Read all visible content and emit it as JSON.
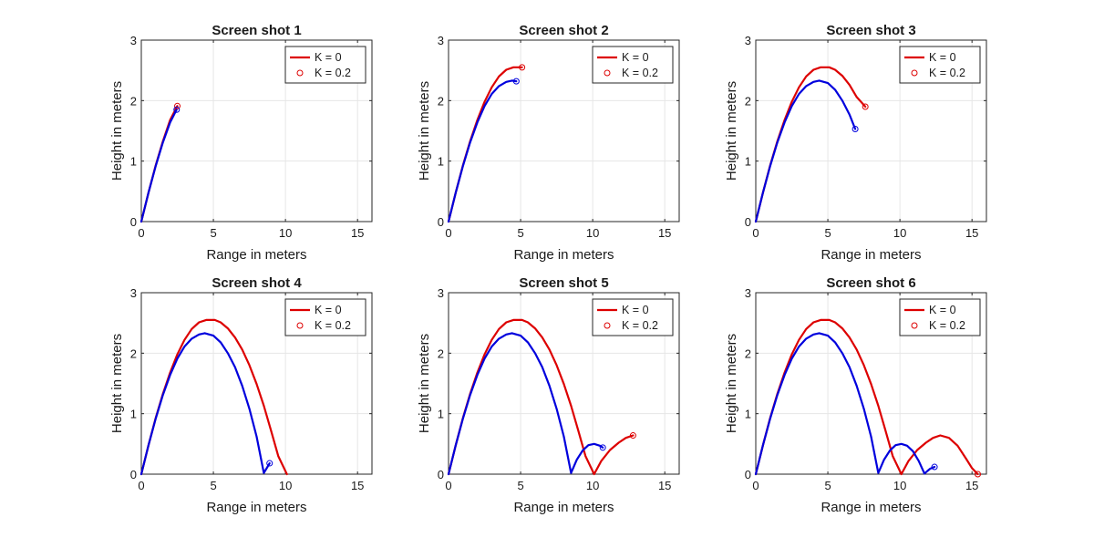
{
  "figure": {
    "colors": {
      "k0": "#dd0000",
      "k02": "#0000dd",
      "axis": "#262626",
      "grid": "#e6e6e6"
    }
  },
  "chart_data": [
    {
      "type": "line",
      "title": "Screen shot 1",
      "xlabel": "Range in meters",
      "ylabel": "Height in meters",
      "xlim": [
        0,
        16
      ],
      "ylim": [
        0,
        3
      ],
      "xticks": [
        0,
        5,
        10,
        15
      ],
      "yticks": [
        0,
        1,
        2,
        3
      ],
      "grid": true,
      "legend": {
        "placement": "top-right",
        "entries": [
          "K = 0",
          "K = 0.2"
        ]
      },
      "series": [
        {
          "name": "K = 0",
          "color": "#dd0000",
          "x": [
            0,
            0.5,
            1.0,
            1.5,
            2.0,
            2.5
          ],
          "y": [
            0,
            0.48,
            0.93,
            1.33,
            1.68,
            1.91
          ],
          "end_marker": true
        },
        {
          "name": "K = 0.2",
          "color": "#0000dd",
          "x": [
            0,
            0.5,
            1.0,
            1.5,
            2.0,
            2.45
          ],
          "y": [
            0,
            0.48,
            0.92,
            1.31,
            1.64,
            1.85
          ],
          "end_marker": true
        }
      ]
    },
    {
      "type": "line",
      "title": "Screen shot 2",
      "xlabel": "Range in meters",
      "ylabel": "Height in meters",
      "xlim": [
        0,
        16
      ],
      "ylim": [
        0,
        3
      ],
      "xticks": [
        0,
        5,
        10,
        15
      ],
      "yticks": [
        0,
        1,
        2,
        3
      ],
      "grid": true,
      "legend": {
        "placement": "top-right",
        "entries": [
          "K = 0",
          "K = 0.2"
        ]
      },
      "series": [
        {
          "name": "K = 0",
          "color": "#dd0000",
          "x": [
            0,
            0.5,
            1.0,
            1.5,
            2.0,
            2.5,
            3.0,
            3.5,
            4.0,
            4.5,
            5.1
          ],
          "y": [
            0,
            0.48,
            0.93,
            1.33,
            1.68,
            1.98,
            2.22,
            2.4,
            2.51,
            2.55,
            2.55
          ],
          "end_marker": true
        },
        {
          "name": "K = 0.2",
          "color": "#0000dd",
          "x": [
            0,
            0.5,
            1.0,
            1.5,
            2.0,
            2.5,
            3.0,
            3.5,
            4.0,
            4.4,
            4.7
          ],
          "y": [
            0,
            0.48,
            0.92,
            1.31,
            1.64,
            1.91,
            2.11,
            2.24,
            2.31,
            2.33,
            2.32
          ],
          "end_marker": true
        }
      ]
    },
    {
      "type": "line",
      "title": "Screen shot 3",
      "xlabel": "Range in meters",
      "ylabel": "Height in meters",
      "xlim": [
        0,
        16
      ],
      "ylim": [
        0,
        3
      ],
      "xticks": [
        0,
        5,
        10,
        15
      ],
      "yticks": [
        0,
        1,
        2,
        3
      ],
      "grid": true,
      "legend": {
        "placement": "top-right",
        "entries": [
          "K = 0",
          "K = 0.2"
        ]
      },
      "series": [
        {
          "name": "K = 0",
          "color": "#dd0000",
          "x": [
            0,
            0.5,
            1.0,
            1.5,
            2.0,
            2.5,
            3.0,
            3.5,
            4.0,
            4.5,
            5.1,
            5.5,
            6.0,
            6.5,
            7.0,
            7.6
          ],
          "y": [
            0,
            0.48,
            0.93,
            1.33,
            1.68,
            1.98,
            2.22,
            2.4,
            2.51,
            2.55,
            2.55,
            2.51,
            2.41,
            2.26,
            2.06,
            1.9
          ],
          "end_marker": true
        },
        {
          "name": "K = 0.2",
          "color": "#0000dd",
          "x": [
            0,
            0.5,
            1.0,
            1.5,
            2.0,
            2.5,
            3.0,
            3.5,
            4.0,
            4.4,
            5.0,
            5.5,
            6.0,
            6.5,
            6.9
          ],
          "y": [
            0,
            0.48,
            0.92,
            1.31,
            1.64,
            1.91,
            2.11,
            2.24,
            2.31,
            2.33,
            2.29,
            2.18,
            2.0,
            1.77,
            1.53
          ],
          "end_marker": true
        }
      ]
    },
    {
      "type": "line",
      "title": "Screen shot 4",
      "xlabel": "Range in meters",
      "ylabel": "Height in meters",
      "xlim": [
        0,
        16
      ],
      "ylim": [
        0,
        3
      ],
      "xticks": [
        0,
        5,
        10,
        15
      ],
      "yticks": [
        0,
        1,
        2,
        3
      ],
      "grid": true,
      "legend": {
        "placement": "top-right",
        "entries": [
          "K = 0",
          "K = 0.2"
        ]
      },
      "series": [
        {
          "name": "K = 0",
          "color": "#dd0000",
          "x": [
            0,
            0.5,
            1.0,
            1.5,
            2.0,
            2.5,
            3.0,
            3.5,
            4.0,
            4.5,
            5.1,
            5.5,
            6.0,
            6.5,
            7.0,
            7.5,
            8.0,
            8.5,
            9.0,
            9.5,
            10.1
          ],
          "y": [
            0,
            0.48,
            0.93,
            1.33,
            1.68,
            1.98,
            2.22,
            2.4,
            2.51,
            2.55,
            2.55,
            2.51,
            2.41,
            2.26,
            2.06,
            1.8,
            1.49,
            1.13,
            0.72,
            0.3,
            0
          ],
          "end_marker": false
        },
        {
          "name": "K = 0.2",
          "color": "#0000dd",
          "x": [
            0,
            0.5,
            1.0,
            1.5,
            2.0,
            2.5,
            3.0,
            3.5,
            4.0,
            4.4,
            5.0,
            5.5,
            6.0,
            6.5,
            7.0,
            7.5,
            8.0,
            8.5,
            8.75,
            8.9
          ],
          "y": [
            0,
            0.48,
            0.92,
            1.31,
            1.64,
            1.91,
            2.11,
            2.24,
            2.31,
            2.33,
            2.29,
            2.18,
            2.0,
            1.77,
            1.46,
            1.08,
            0.62,
            0.02,
            0.12,
            0.18
          ],
          "end_marker": true
        }
      ]
    },
    {
      "type": "line",
      "title": "Screen shot 5",
      "xlabel": "Range in meters",
      "ylabel": "Height in meters",
      "xlim": [
        0,
        16
      ],
      "ylim": [
        0,
        3
      ],
      "xticks": [
        0,
        5,
        10,
        15
      ],
      "yticks": [
        0,
        1,
        2,
        3
      ],
      "grid": true,
      "legend": {
        "placement": "top-right",
        "entries": [
          "K = 0",
          "K = 0.2"
        ]
      },
      "series": [
        {
          "name": "K = 0",
          "color": "#dd0000",
          "x": [
            0,
            0.5,
            1.0,
            1.5,
            2.0,
            2.5,
            3.0,
            3.5,
            4.0,
            4.5,
            5.1,
            5.5,
            6.0,
            6.5,
            7.0,
            7.5,
            8.0,
            8.5,
            9.0,
            9.5,
            10.1,
            10.6,
            11.2,
            11.8,
            12.3,
            12.8
          ],
          "y": [
            0,
            0.48,
            0.93,
            1.33,
            1.68,
            1.98,
            2.22,
            2.4,
            2.51,
            2.55,
            2.55,
            2.51,
            2.41,
            2.26,
            2.06,
            1.8,
            1.49,
            1.13,
            0.72,
            0.3,
            0,
            0.22,
            0.4,
            0.52,
            0.6,
            0.64
          ],
          "end_marker": true
        },
        {
          "name": "K = 0.2",
          "color": "#0000dd",
          "x": [
            0,
            0.5,
            1.0,
            1.5,
            2.0,
            2.5,
            3.0,
            3.5,
            4.0,
            4.4,
            5.0,
            5.5,
            6.0,
            6.5,
            7.0,
            7.5,
            8.0,
            8.5,
            8.9,
            9.3,
            9.7,
            10.1,
            10.5,
            10.7
          ],
          "y": [
            0,
            0.48,
            0.92,
            1.31,
            1.64,
            1.91,
            2.11,
            2.24,
            2.31,
            2.33,
            2.29,
            2.18,
            2.0,
            1.77,
            1.46,
            1.08,
            0.62,
            0.02,
            0.24,
            0.39,
            0.48,
            0.5,
            0.47,
            0.44
          ],
          "end_marker": true
        }
      ]
    },
    {
      "type": "line",
      "title": "Screen shot 6",
      "xlabel": "Range in meters",
      "ylabel": "Height in meters",
      "xlim": [
        0,
        16
      ],
      "ylim": [
        0,
        3
      ],
      "xticks": [
        0,
        5,
        10,
        15
      ],
      "yticks": [
        0,
        1,
        2,
        3
      ],
      "grid": true,
      "legend": {
        "placement": "top-right",
        "entries": [
          "K = 0",
          "K = 0.2"
        ]
      },
      "series": [
        {
          "name": "K = 0",
          "color": "#dd0000",
          "x": [
            0,
            0.5,
            1.0,
            1.5,
            2.0,
            2.5,
            3.0,
            3.5,
            4.0,
            4.5,
            5.1,
            5.5,
            6.0,
            6.5,
            7.0,
            7.5,
            8.0,
            8.5,
            9.0,
            9.5,
            10.1,
            10.6,
            11.2,
            11.8,
            12.3,
            12.8,
            13.4,
            14.0,
            14.6,
            15.0,
            15.4
          ],
          "y": [
            0,
            0.48,
            0.93,
            1.33,
            1.68,
            1.98,
            2.22,
            2.4,
            2.51,
            2.55,
            2.55,
            2.51,
            2.41,
            2.26,
            2.06,
            1.8,
            1.49,
            1.13,
            0.72,
            0.3,
            0,
            0.22,
            0.4,
            0.52,
            0.6,
            0.64,
            0.6,
            0.47,
            0.25,
            0.1,
            0
          ],
          "end_marker": true
        },
        {
          "name": "K = 0.2",
          "color": "#0000dd",
          "x": [
            0,
            0.5,
            1.0,
            1.5,
            2.0,
            2.5,
            3.0,
            3.5,
            4.0,
            4.4,
            5.0,
            5.5,
            6.0,
            6.5,
            7.0,
            7.5,
            8.0,
            8.5,
            8.9,
            9.3,
            9.7,
            10.1,
            10.5,
            10.9,
            11.3,
            11.7,
            12.1,
            12.4
          ],
          "y": [
            0,
            0.48,
            0.92,
            1.31,
            1.64,
            1.91,
            2.11,
            2.24,
            2.31,
            2.33,
            2.29,
            2.18,
            2.0,
            1.77,
            1.46,
            1.08,
            0.62,
            0.02,
            0.24,
            0.39,
            0.48,
            0.5,
            0.47,
            0.38,
            0.22,
            0.01,
            0.09,
            0.12
          ],
          "end_marker": true
        }
      ]
    }
  ]
}
